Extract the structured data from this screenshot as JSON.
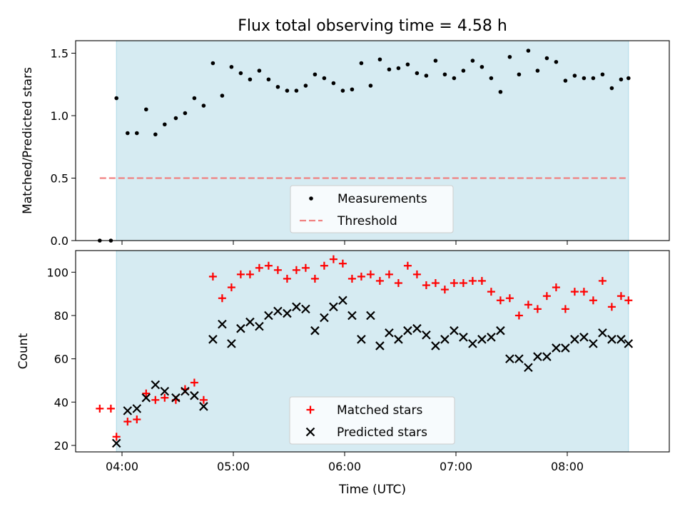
{
  "title": "Flux total observing time = 4.58 h",
  "colors": {
    "shade": "#add8e6",
    "measurement": "#000000",
    "threshold": "#f08080",
    "matched": "#ff0000",
    "predicted": "#000000"
  },
  "chart_data": [
    {
      "type": "scatter",
      "ylabel": "Matched/Predicted stars",
      "ylim": [
        0,
        1.6
      ],
      "yticks": [
        "0.0",
        "0.5",
        "1.0",
        "1.5"
      ],
      "xlim": [
        "03:35",
        "08:55"
      ],
      "shaded_interval": [
        "03:57",
        "08:33"
      ],
      "legend": {
        "placement": "lower center",
        "entries": [
          "Measurements",
          "Threshold"
        ]
      },
      "series": [
        {
          "name": "Measurements",
          "marker": "dot",
          "x": [
            "03:48",
            "03:54",
            "03:57",
            "04:03",
            "04:08",
            "04:13",
            "04:18",
            "04:23",
            "04:29",
            "04:34",
            "04:39",
            "04:44",
            "04:49",
            "04:54",
            "04:59",
            "05:04",
            "05:09",
            "05:14",
            "05:19",
            "05:24",
            "05:29",
            "05:34",
            "05:39",
            "05:44",
            "05:49",
            "05:54",
            "05:59",
            "06:04",
            "06:09",
            "06:14",
            "06:19",
            "06:24",
            "06:29",
            "06:34",
            "06:39",
            "06:44",
            "06:49",
            "06:54",
            "06:59",
            "07:04",
            "07:09",
            "07:14",
            "07:19",
            "07:24",
            "07:29",
            "07:34",
            "07:39",
            "07:44",
            "07:49",
            "07:54",
            "07:59",
            "08:04",
            "08:09",
            "08:14",
            "08:19",
            "08:24",
            "08:29",
            "08:33"
          ],
          "y": [
            0.0,
            0.0,
            1.14,
            0.86,
            0.86,
            1.05,
            0.85,
            0.93,
            0.98,
            1.02,
            1.14,
            1.08,
            1.42,
            1.16,
            1.39,
            1.34,
            1.29,
            1.36,
            1.29,
            1.23,
            1.2,
            1.2,
            1.24,
            1.33,
            1.3,
            1.26,
            1.2,
            1.21,
            1.42,
            1.24,
            1.45,
            1.37,
            1.38,
            1.41,
            1.34,
            1.32,
            1.44,
            1.33,
            1.3,
            1.36,
            1.44,
            1.39,
            1.3,
            1.19,
            1.47,
            1.33,
            1.52,
            1.36,
            1.46,
            1.43,
            1.28,
            1.32,
            1.3,
            1.3,
            1.33,
            1.22,
            1.29,
            1.3
          ]
        },
        {
          "name": "Threshold",
          "style": "dashed",
          "x": [
            "03:48",
            "08:33"
          ],
          "y": [
            0.5,
            0.5
          ]
        }
      ]
    },
    {
      "type": "scatter",
      "xlabel": "Time (UTC)",
      "ylabel": "Count",
      "ylim": [
        17,
        110
      ],
      "yticks": [
        "20",
        "40",
        "60",
        "80",
        "100"
      ],
      "xticks": [
        "04:00",
        "05:00",
        "06:00",
        "07:00",
        "08:00"
      ],
      "xlim": [
        "03:35",
        "08:55"
      ],
      "shaded_interval": [
        "03:57",
        "08:33"
      ],
      "legend": {
        "placement": "lower center",
        "entries": [
          "Matched stars",
          "Predicted stars"
        ]
      },
      "series": [
        {
          "name": "Matched stars",
          "marker": "plus",
          "x": [
            "03:48",
            "03:54",
            "03:57",
            "04:03",
            "04:08",
            "04:13",
            "04:18",
            "04:23",
            "04:29",
            "04:34",
            "04:39",
            "04:44",
            "04:49",
            "04:54",
            "04:59",
            "05:04",
            "05:09",
            "05:14",
            "05:19",
            "05:24",
            "05:29",
            "05:34",
            "05:39",
            "05:44",
            "05:49",
            "05:54",
            "05:59",
            "06:04",
            "06:09",
            "06:14",
            "06:19",
            "06:24",
            "06:29",
            "06:34",
            "06:39",
            "06:44",
            "06:49",
            "06:54",
            "06:59",
            "07:04",
            "07:09",
            "07:14",
            "07:19",
            "07:24",
            "07:29",
            "07:34",
            "07:39",
            "07:44",
            "07:49",
            "07:54",
            "07:59",
            "08:04",
            "08:09",
            "08:14",
            "08:19",
            "08:24",
            "08:29",
            "08:33"
          ],
          "y": [
            37,
            37,
            24,
            31,
            32,
            44,
            41,
            42,
            41,
            46,
            49,
            41,
            98,
            88,
            93,
            99,
            99,
            102,
            103,
            101,
            97,
            101,
            102,
            97,
            103,
            106,
            104,
            97,
            98,
            99,
            96,
            99,
            95,
            103,
            99,
            94,
            95,
            92,
            95,
            95,
            96,
            96,
            91,
            87,
            88,
            80,
            85,
            83,
            89,
            93,
            83,
            91,
            91,
            87,
            96,
            84,
            89,
            87
          ]
        },
        {
          "name": "Predicted stars",
          "marker": "x",
          "x": [
            "03:57",
            "04:03",
            "04:08",
            "04:13",
            "04:18",
            "04:23",
            "04:29",
            "04:34",
            "04:39",
            "04:44",
            "04:49",
            "04:54",
            "04:59",
            "05:04",
            "05:09",
            "05:14",
            "05:19",
            "05:24",
            "05:29",
            "05:34",
            "05:39",
            "05:44",
            "05:49",
            "05:54",
            "05:59",
            "06:04",
            "06:09",
            "06:14",
            "06:19",
            "06:24",
            "06:29",
            "06:34",
            "06:39",
            "06:44",
            "06:49",
            "06:54",
            "06:59",
            "07:04",
            "07:09",
            "07:14",
            "07:19",
            "07:24",
            "07:29",
            "07:34",
            "07:39",
            "07:44",
            "07:49",
            "07:54",
            "07:59",
            "08:04",
            "08:09",
            "08:14",
            "08:19",
            "08:24",
            "08:29",
            "08:33"
          ],
          "y": [
            21,
            36,
            37,
            42,
            48,
            45,
            42,
            45,
            43,
            38,
            69,
            76,
            67,
            74,
            77,
            75,
            80,
            82,
            81,
            84,
            83,
            73,
            79,
            84,
            87,
            80,
            69,
            80,
            66,
            72,
            69,
            73,
            74,
            71,
            66,
            69,
            73,
            70,
            67,
            69,
            70,
            73,
            60,
            60,
            56,
            61,
            61,
            65,
            65,
            69,
            70,
            67,
            72,
            69,
            69,
            67
          ]
        }
      ]
    }
  ]
}
